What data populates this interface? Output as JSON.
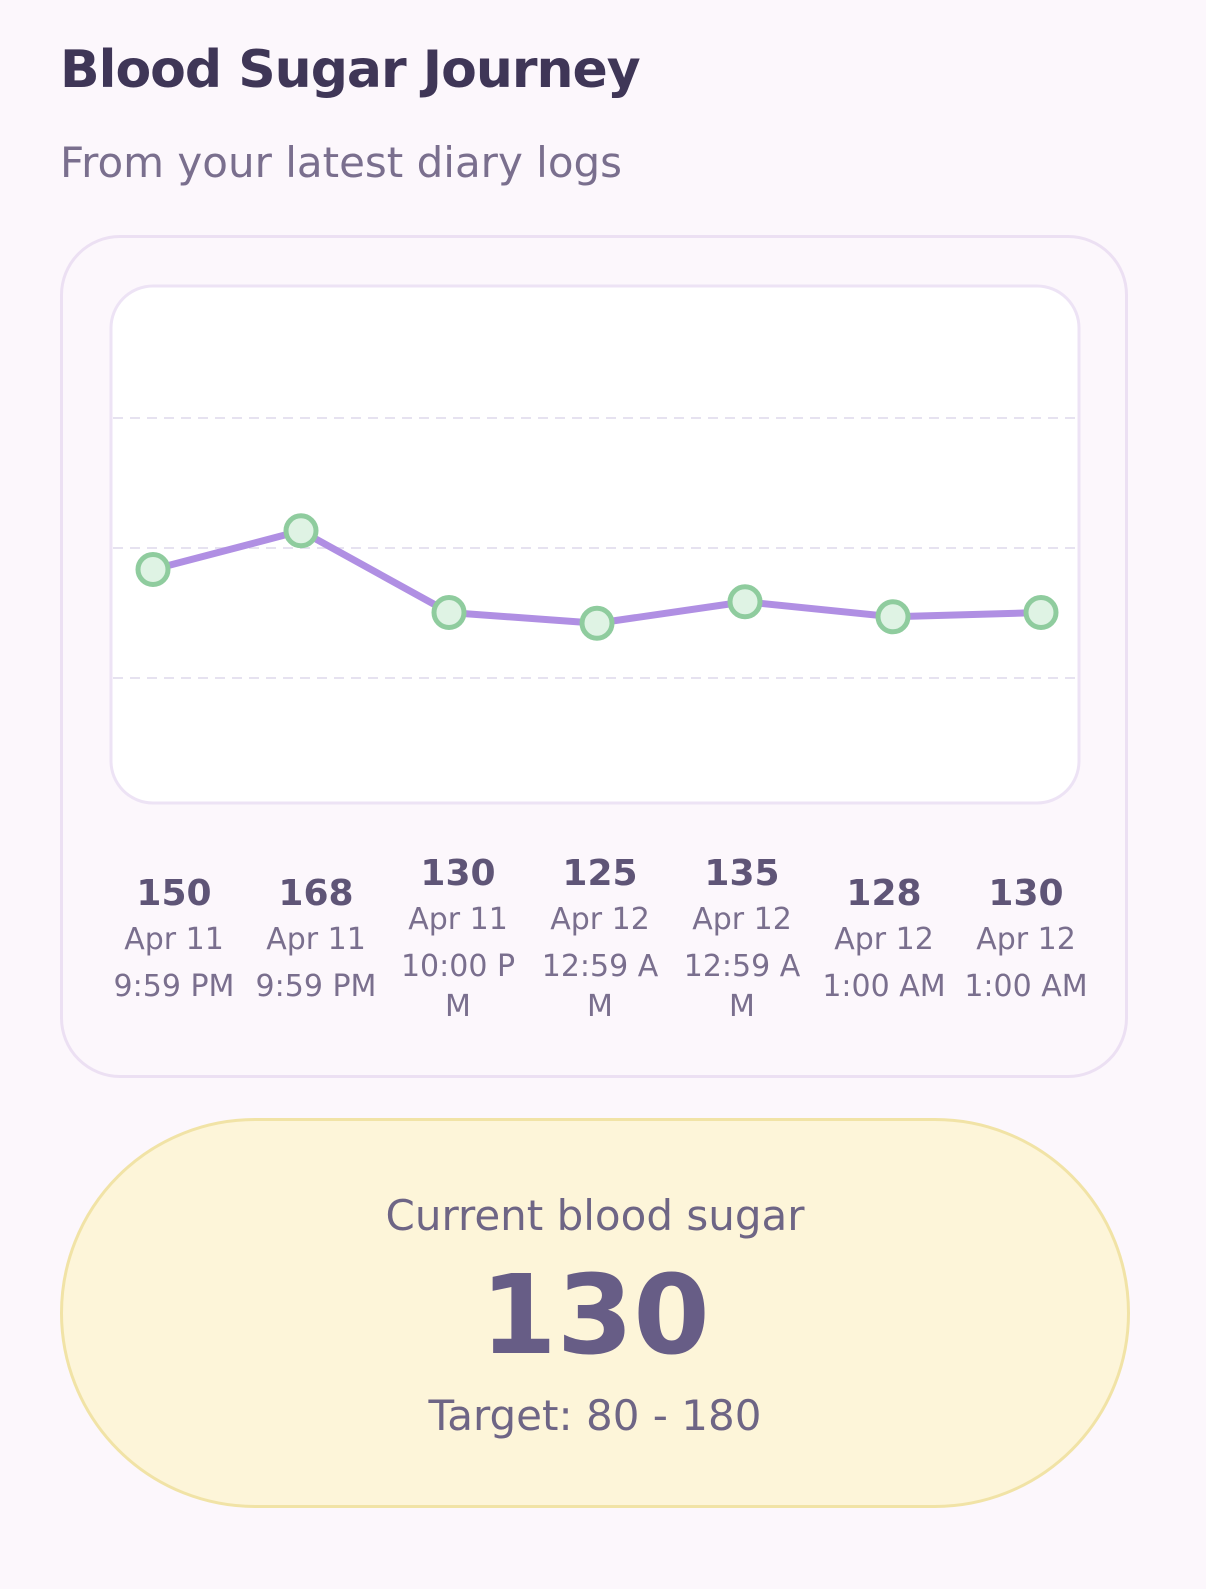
{
  "header": {
    "title": "Blood Sugar Journey",
    "subtitle": "From your latest diary logs"
  },
  "chart_data": {
    "type": "line",
    "values": [
      150,
      168,
      130,
      125,
      135,
      128,
      130
    ],
    "dates": [
      "Apr 11",
      "Apr 11",
      "Apr 11",
      "Apr 12",
      "Apr 12",
      "Apr 12",
      "Apr 12"
    ],
    "times": [
      "9:59 PM",
      "9:59 PM",
      "10:00 PM",
      "12:59 AM",
      "12:59 AM",
      "1:00 AM",
      "1:00 AM"
    ],
    "ylim": [
      40,
      280
    ],
    "color": "#b08fe3",
    "point_color": "#8fcc9e"
  },
  "current": {
    "label": "Current blood sugar",
    "value": 130,
    "target": "Target: 80 - 180"
  }
}
